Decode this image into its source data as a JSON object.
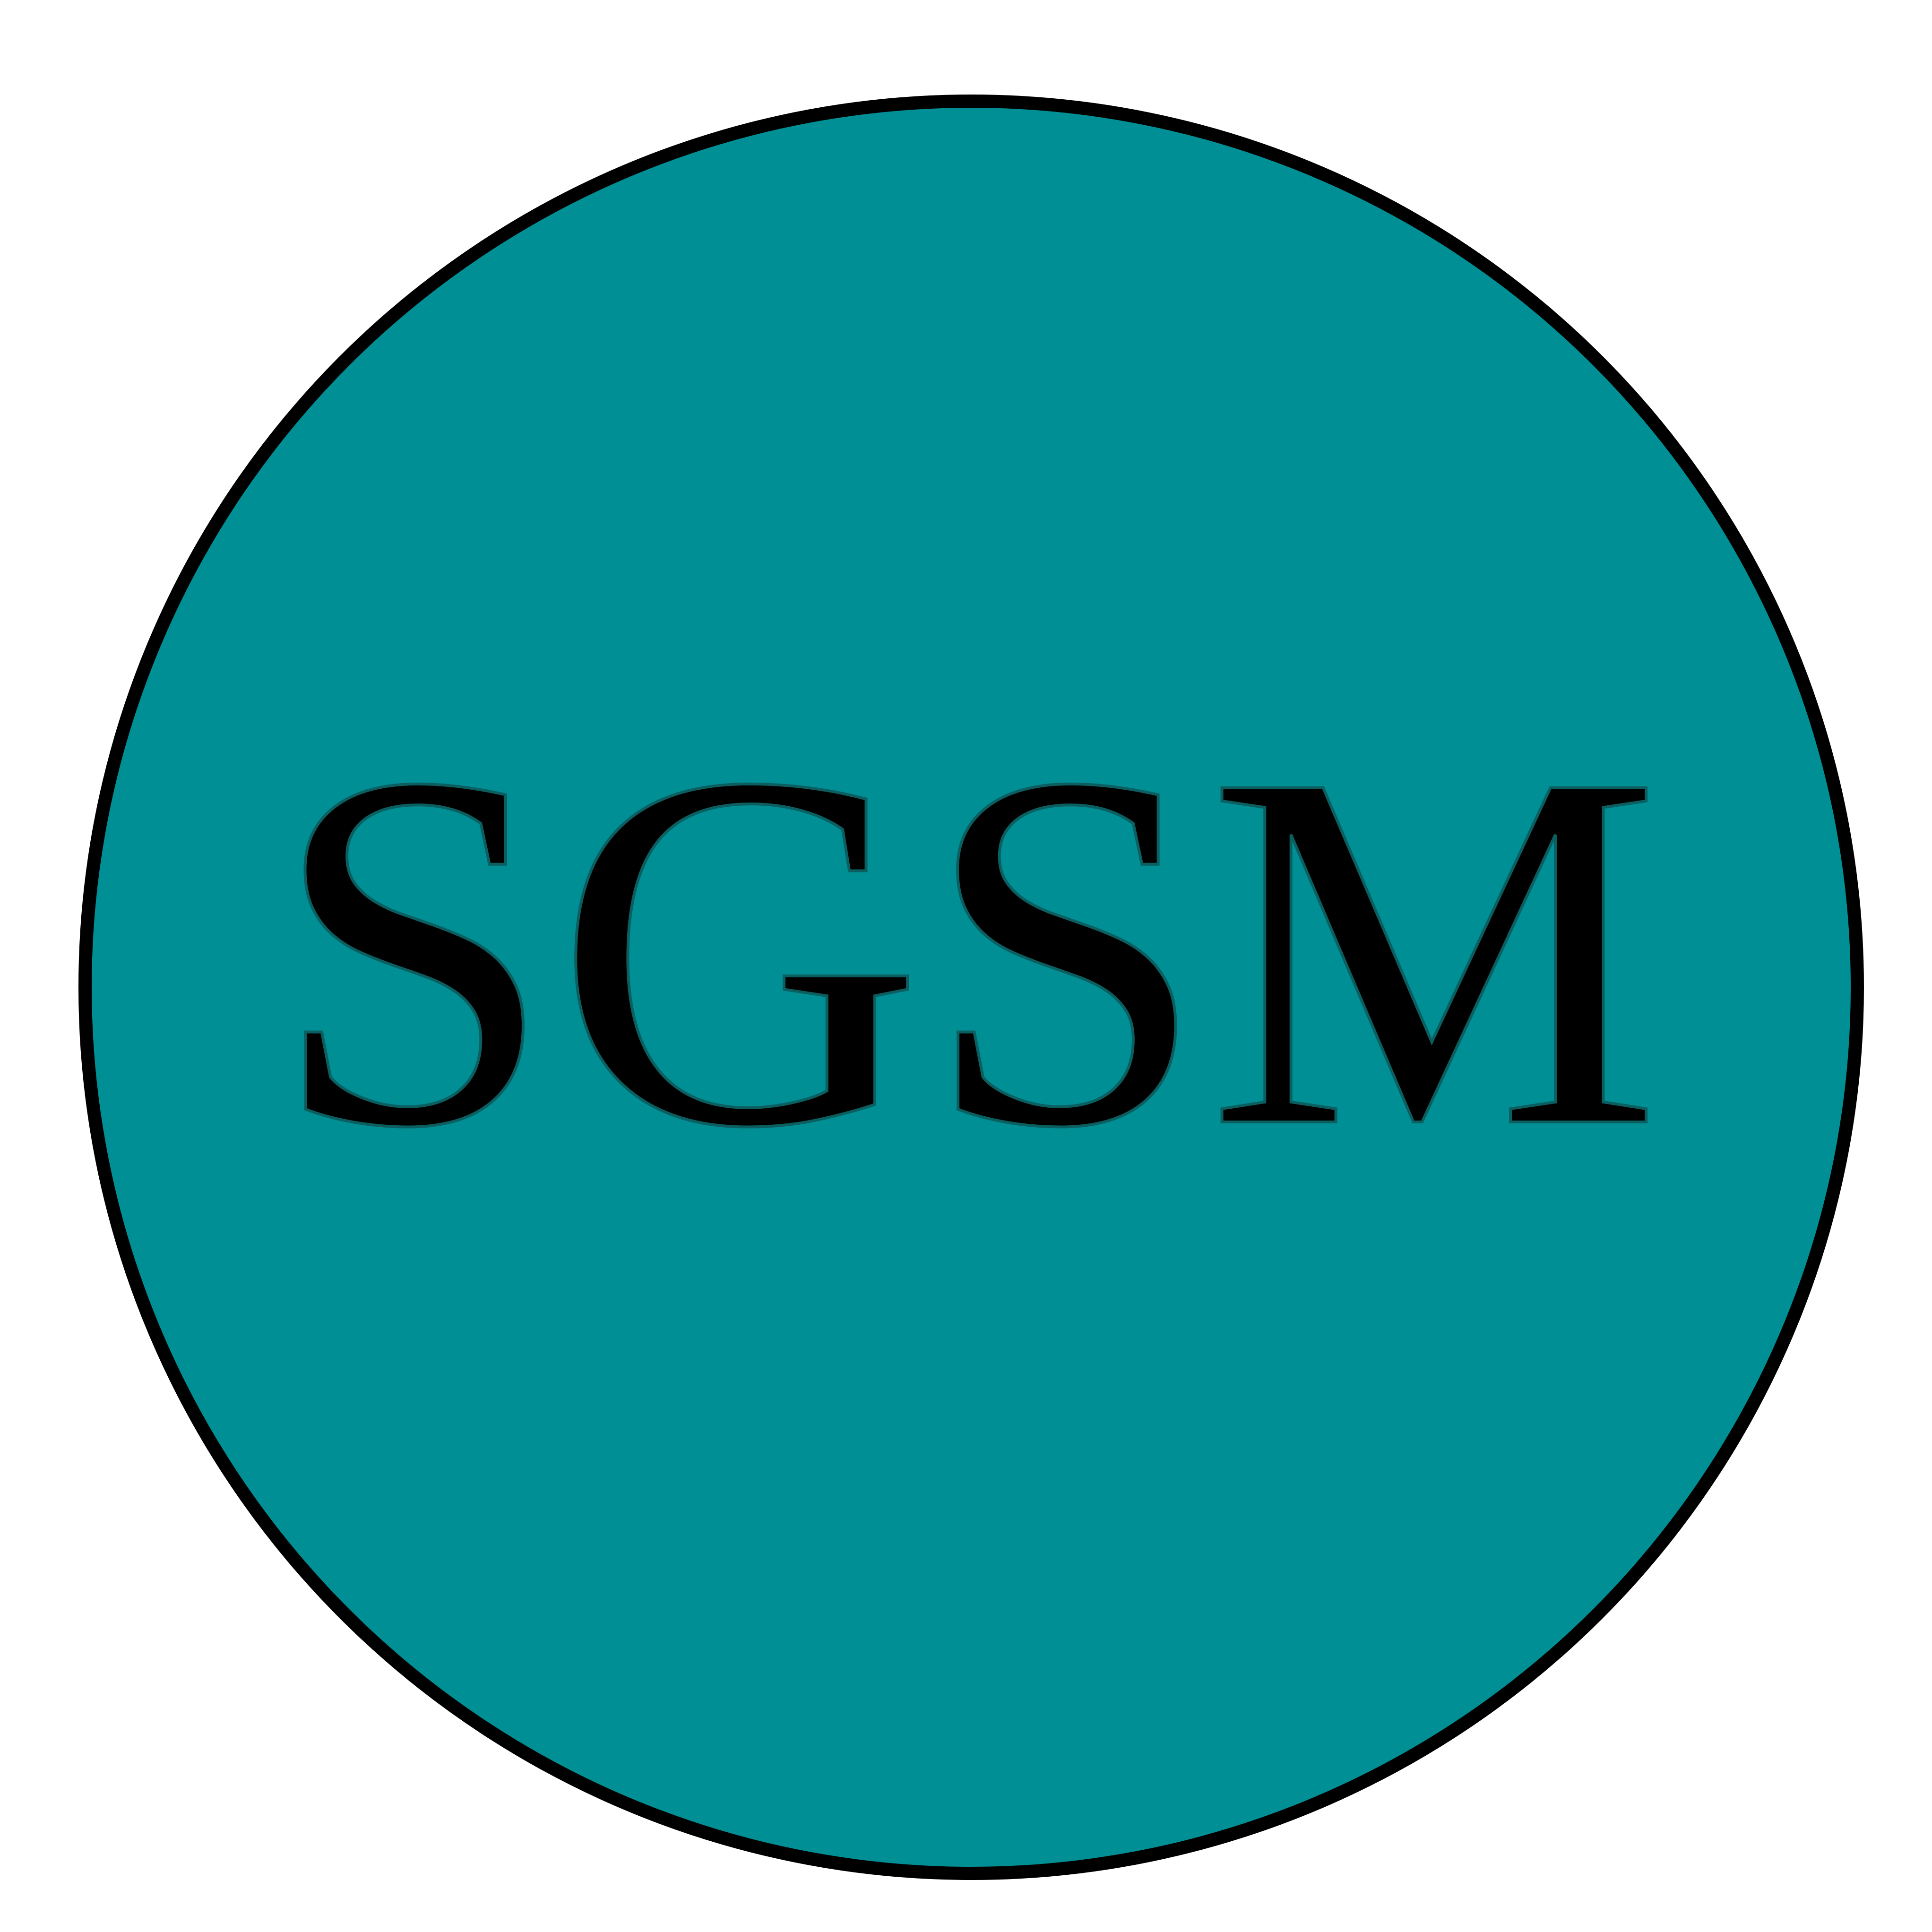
{
  "logo": {
    "text": "SGSM",
    "fill_color": "#008f94",
    "border_color": "#000000",
    "text_color": "#000000",
    "background_color": "#ffffff"
  }
}
